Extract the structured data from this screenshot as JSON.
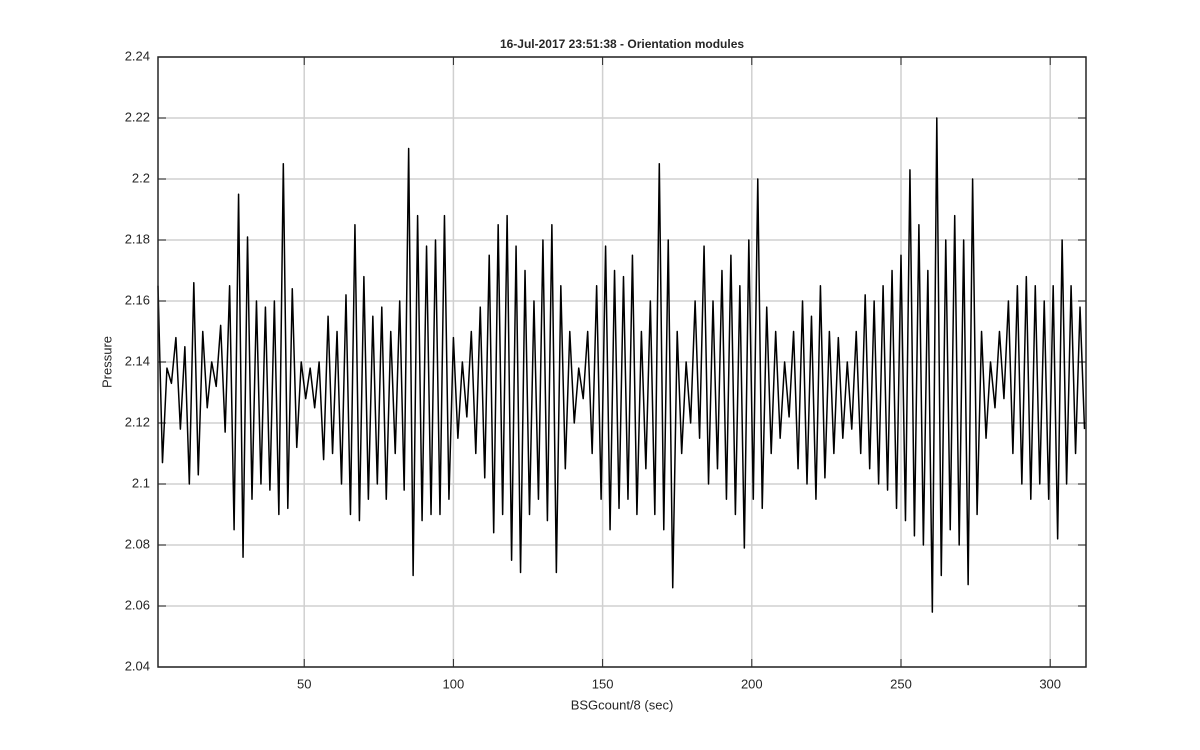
{
  "chart_data": {
    "type": "line",
    "title": "16-Jul-2017 23:51:38 - Orientation modules",
    "x_label": "BSGcount/8 (sec)",
    "y_label": "Pressure",
    "xlim": [
      1,
      312
    ],
    "ylim": [
      2.04,
      2.24
    ],
    "xticks": [
      50,
      100,
      150,
      200,
      250,
      300
    ],
    "yticks": [
      2.04,
      2.06,
      2.08,
      2.1,
      2.12,
      2.14,
      2.16,
      2.18,
      2.2,
      2.22,
      2.24
    ],
    "grid": true,
    "x": [
      1,
      2.5,
      4,
      5.5,
      7,
      8.5,
      10,
      11.5,
      13,
      14.5,
      16,
      17.5,
      19,
      20.5,
      22,
      23.5,
      25,
      26.5,
      28,
      29.5,
      31,
      32.5,
      34,
      35.5,
      37,
      38.5,
      40,
      41.5,
      43,
      44.5,
      46,
      47.5,
      49,
      50.5,
      52,
      53.5,
      55,
      56.5,
      58,
      59.5,
      61,
      62.5,
      64,
      65.5,
      67,
      68.5,
      70,
      71.5,
      73,
      74.5,
      76,
      77.5,
      79,
      80.5,
      82,
      83.5,
      85,
      86.5,
      88,
      89.5,
      91,
      92.5,
      94,
      95.5,
      97,
      98.5,
      100,
      101.5,
      103,
      104.5,
      106,
      107.5,
      109,
      110.5,
      112,
      113.5,
      115,
      116.5,
      118,
      119.5,
      121,
      122.5,
      124,
      125.5,
      127,
      128.5,
      130,
      131.5,
      133,
      134.5,
      136,
      137.5,
      139,
      140.5,
      142,
      143.5,
      145,
      146.5,
      148,
      149.5,
      151,
      152.5,
      154,
      155.5,
      157,
      158.5,
      160,
      161.5,
      163,
      164.5,
      166,
      167.5,
      169,
      170.5,
      172,
      173.5,
      175,
      176.5,
      178,
      179.5,
      181,
      182.5,
      184,
      185.5,
      187,
      188.5,
      190,
      191.5,
      193,
      194.5,
      196,
      197.5,
      199,
      200.5,
      202,
      203.5,
      205,
      206.5,
      208,
      209.5,
      211,
      212.5,
      214,
      215.5,
      217,
      218.5,
      220,
      221.5,
      223,
      224.5,
      226,
      227.5,
      229,
      230.5,
      232,
      233.5,
      235,
      236.5,
      238,
      239.5,
      241,
      242.5,
      244,
      245.5,
      247,
      248.5,
      250,
      251.5,
      253,
      254.5,
      256,
      257.5,
      259,
      260.5,
      262,
      263.5,
      265,
      266.5,
      268,
      269.5,
      271,
      272.5,
      274,
      275.5,
      277,
      278.5,
      280,
      281.5,
      283,
      284.5,
      286,
      287.5,
      289,
      290.5,
      292,
      293.5,
      295,
      296.5,
      298,
      299.5,
      301,
      302.5,
      304,
      305.5,
      307,
      308.5,
      310,
      311.5
    ],
    "series": [
      {
        "color": "#000000",
        "values": [
          2.165,
          2.107,
          2.138,
          2.133,
          2.148,
          2.118,
          2.145,
          2.1,
          2.166,
          2.103,
          2.15,
          2.125,
          2.14,
          2.132,
          2.152,
          2.117,
          2.165,
          2.085,
          2.195,
          2.076,
          2.181,
          2.095,
          2.16,
          2.1,
          2.158,
          2.098,
          2.16,
          2.09,
          2.205,
          2.092,
          2.164,
          2.112,
          2.14,
          2.128,
          2.138,
          2.125,
          2.14,
          2.108,
          2.155,
          2.11,
          2.15,
          2.1,
          2.162,
          2.09,
          2.185,
          2.088,
          2.168,
          2.095,
          2.155,
          2.1,
          2.158,
          2.095,
          2.15,
          2.11,
          2.16,
          2.098,
          2.21,
          2.07,
          2.188,
          2.088,
          2.178,
          2.09,
          2.18,
          2.09,
          2.188,
          2.095,
          2.148,
          2.115,
          2.14,
          2.122,
          2.15,
          2.11,
          2.158,
          2.102,
          2.175,
          2.084,
          2.185,
          2.09,
          2.188,
          2.075,
          2.178,
          2.071,
          2.17,
          2.09,
          2.16,
          2.095,
          2.18,
          2.088,
          2.185,
          2.071,
          2.165,
          2.105,
          2.15,
          2.12,
          2.138,
          2.128,
          2.15,
          2.11,
          2.165,
          2.095,
          2.178,
          2.085,
          2.17,
          2.092,
          2.168,
          2.095,
          2.175,
          2.09,
          2.15,
          2.105,
          2.16,
          2.09,
          2.205,
          2.085,
          2.18,
          2.066,
          2.15,
          2.11,
          2.14,
          2.12,
          2.16,
          2.115,
          2.178,
          2.1,
          2.16,
          2.105,
          2.17,
          2.095,
          2.175,
          2.09,
          2.165,
          2.079,
          2.18,
          2.095,
          2.2,
          2.092,
          2.158,
          2.11,
          2.15,
          2.115,
          2.14,
          2.122,
          2.15,
          2.105,
          2.16,
          2.1,
          2.155,
          2.095,
          2.165,
          2.102,
          2.15,
          2.11,
          2.148,
          2.115,
          2.14,
          2.118,
          2.15,
          2.11,
          2.162,
          2.105,
          2.16,
          2.1,
          2.165,
          2.098,
          2.17,
          2.092,
          2.175,
          2.088,
          2.203,
          2.083,
          2.185,
          2.08,
          2.17,
          2.058,
          2.22,
          2.07,
          2.18,
          2.085,
          2.188,
          2.08,
          2.18,
          2.067,
          2.2,
          2.09,
          2.15,
          2.115,
          2.14,
          2.125,
          2.15,
          2.128,
          2.16,
          2.11,
          2.165,
          2.1,
          2.168,
          2.095,
          2.165,
          2.1,
          2.16,
          2.095,
          2.165,
          2.082,
          2.18,
          2.1,
          2.165,
          2.11,
          2.158,
          2.118
        ]
      }
    ]
  }
}
